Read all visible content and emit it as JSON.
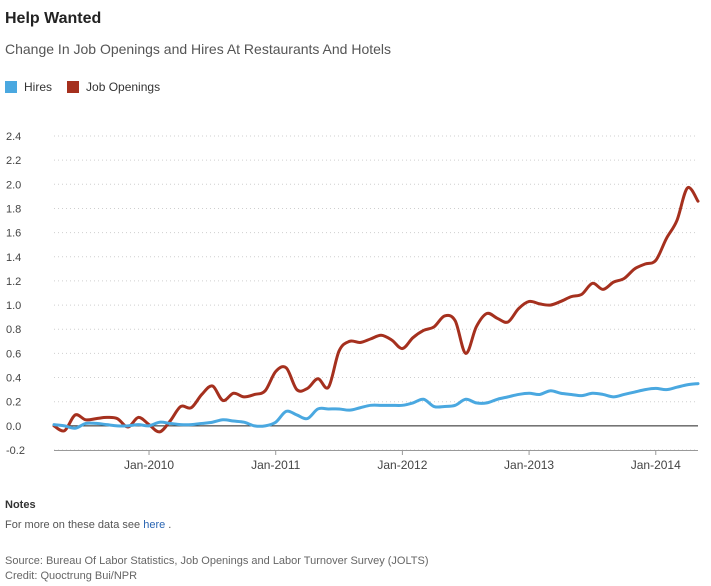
{
  "header": {
    "title": "Help Wanted",
    "subtitle": "Change In Job Openings and Hires At Restaurants And Hotels"
  },
  "legend": [
    {
      "name": "Hires",
      "color": "#4aa8e0"
    },
    {
      "name": "Job Openings",
      "color": "#a5301e"
    }
  ],
  "notes": {
    "heading": "Notes",
    "text_prefix": "For more on these data see",
    "link_text": "here",
    "text_suffix": "."
  },
  "footer": {
    "source": "Source: Bureau Of Labor Statistics, Job Openings and Labor Turnover Survey (JOLTS)",
    "credit": "Credit: Quoctrung Bui/NPR"
  },
  "chart_data": {
    "type": "line",
    "title": "Help Wanted",
    "subtitle": "Change In Job Openings and Hires At Restaurants And Hotels",
    "xlabel": "",
    "ylabel": "",
    "ylim": [
      -0.2,
      2.4
    ],
    "yticks": [
      "-0.2",
      "0.0",
      "0.2",
      "0.4",
      "0.6",
      "0.8",
      "1.0",
      "1.2",
      "1.4",
      "1.6",
      "1.8",
      "2.0",
      "2.2",
      "2.4"
    ],
    "xticks": [
      {
        "label": "Jan-2010",
        "date": "2010-01"
      },
      {
        "label": "Jan-2011",
        "date": "2011-01"
      },
      {
        "label": "Jan-2012",
        "date": "2012-01"
      },
      {
        "label": "Jan-2013",
        "date": "2013-01"
      },
      {
        "label": "Jan-2014",
        "date": "2014-01"
      }
    ],
    "grid": "horizontal dotted",
    "legend_position": "top-left",
    "series": [
      {
        "name": "Job Openings",
        "color": "#a5301e",
        "points": [
          [
            "2009-04",
            0.0
          ],
          [
            "2009-05",
            -0.04
          ],
          [
            "2009-06",
            0.09
          ],
          [
            "2009-07",
            0.05
          ],
          [
            "2009-08",
            0.06
          ],
          [
            "2009-09",
            0.07
          ],
          [
            "2009-10",
            0.06
          ],
          [
            "2009-11",
            -0.01
          ],
          [
            "2009-12",
            0.07
          ],
          [
            "2010-01",
            0.01
          ],
          [
            "2010-02",
            -0.05
          ],
          [
            "2010-03",
            0.04
          ],
          [
            "2010-04",
            0.16
          ],
          [
            "2010-05",
            0.15
          ],
          [
            "2010-06",
            0.26
          ],
          [
            "2010-07",
            0.33
          ],
          [
            "2010-08",
            0.21
          ],
          [
            "2010-09",
            0.27
          ],
          [
            "2010-10",
            0.24
          ],
          [
            "2010-11",
            0.26
          ],
          [
            "2010-12",
            0.29
          ],
          [
            "2011-01",
            0.45
          ],
          [
            "2011-02",
            0.48
          ],
          [
            "2011-03",
            0.3
          ],
          [
            "2011-04",
            0.31
          ],
          [
            "2011-05",
            0.39
          ],
          [
            "2011-06",
            0.32
          ],
          [
            "2011-07",
            0.62
          ],
          [
            "2011-08",
            0.7
          ],
          [
            "2011-09",
            0.69
          ],
          [
            "2011-10",
            0.72
          ],
          [
            "2011-11",
            0.75
          ],
          [
            "2011-12",
            0.71
          ],
          [
            "2012-01",
            0.64
          ],
          [
            "2012-02",
            0.73
          ],
          [
            "2012-03",
            0.79
          ],
          [
            "2012-04",
            0.82
          ],
          [
            "2012-05",
            0.91
          ],
          [
            "2012-06",
            0.87
          ],
          [
            "2012-07",
            0.6
          ],
          [
            "2012-08",
            0.82
          ],
          [
            "2012-09",
            0.93
          ],
          [
            "2012-10",
            0.89
          ],
          [
            "2012-11",
            0.86
          ],
          [
            "2012-12",
            0.97
          ],
          [
            "2013-01",
            1.03
          ],
          [
            "2013-02",
            1.01
          ],
          [
            "2013-03",
            1.0
          ],
          [
            "2013-04",
            1.03
          ],
          [
            "2013-05",
            1.07
          ],
          [
            "2013-06",
            1.09
          ],
          [
            "2013-07",
            1.18
          ],
          [
            "2013-08",
            1.13
          ],
          [
            "2013-09",
            1.19
          ],
          [
            "2013-10",
            1.22
          ],
          [
            "2013-11",
            1.3
          ],
          [
            "2013-12",
            1.34
          ],
          [
            "2014-01",
            1.37
          ],
          [
            "2014-02",
            1.55
          ],
          [
            "2014-03",
            1.7
          ],
          [
            "2014-04",
            1.97
          ],
          [
            "2014-05",
            1.86
          ]
        ]
      },
      {
        "name": "Hires",
        "color": "#4aa8e0",
        "points": [
          [
            "2009-04",
            0.01
          ],
          [
            "2009-05",
            0.0
          ],
          [
            "2009-06",
            -0.02
          ],
          [
            "2009-07",
            0.02
          ],
          [
            "2009-08",
            0.02
          ],
          [
            "2009-09",
            0.01
          ],
          [
            "2009-10",
            0.0
          ],
          [
            "2009-11",
            0.0
          ],
          [
            "2009-12",
            0.01
          ],
          [
            "2010-01",
            0.0
          ],
          [
            "2010-02",
            0.03
          ],
          [
            "2010-03",
            0.02
          ],
          [
            "2010-04",
            0.01
          ],
          [
            "2010-05",
            0.01
          ],
          [
            "2010-06",
            0.02
          ],
          [
            "2010-07",
            0.03
          ],
          [
            "2010-08",
            0.05
          ],
          [
            "2010-09",
            0.04
          ],
          [
            "2010-10",
            0.03
          ],
          [
            "2010-11",
            0.0
          ],
          [
            "2010-12",
            0.0
          ],
          [
            "2011-01",
            0.03
          ],
          [
            "2011-02",
            0.12
          ],
          [
            "2011-03",
            0.09
          ],
          [
            "2011-04",
            0.06
          ],
          [
            "2011-05",
            0.14
          ],
          [
            "2011-06",
            0.14
          ],
          [
            "2011-07",
            0.14
          ],
          [
            "2011-08",
            0.13
          ],
          [
            "2011-09",
            0.15
          ],
          [
            "2011-10",
            0.17
          ],
          [
            "2011-11",
            0.17
          ],
          [
            "2011-12",
            0.17
          ],
          [
            "2012-01",
            0.17
          ],
          [
            "2012-02",
            0.19
          ],
          [
            "2012-03",
            0.22
          ],
          [
            "2012-04",
            0.16
          ],
          [
            "2012-05",
            0.16
          ],
          [
            "2012-06",
            0.17
          ],
          [
            "2012-07",
            0.22
          ],
          [
            "2012-08",
            0.19
          ],
          [
            "2012-09",
            0.19
          ],
          [
            "2012-10",
            0.22
          ],
          [
            "2012-11",
            0.24
          ],
          [
            "2012-12",
            0.26
          ],
          [
            "2013-01",
            0.27
          ],
          [
            "2013-02",
            0.26
          ],
          [
            "2013-03",
            0.29
          ],
          [
            "2013-04",
            0.27
          ],
          [
            "2013-05",
            0.26
          ],
          [
            "2013-06",
            0.25
          ],
          [
            "2013-07",
            0.27
          ],
          [
            "2013-08",
            0.26
          ],
          [
            "2013-09",
            0.24
          ],
          [
            "2013-10",
            0.26
          ],
          [
            "2013-11",
            0.28
          ],
          [
            "2013-12",
            0.3
          ],
          [
            "2014-01",
            0.31
          ],
          [
            "2014-02",
            0.3
          ],
          [
            "2014-03",
            0.32
          ],
          [
            "2014-04",
            0.34
          ],
          [
            "2014-05",
            0.35
          ]
        ]
      }
    ]
  }
}
